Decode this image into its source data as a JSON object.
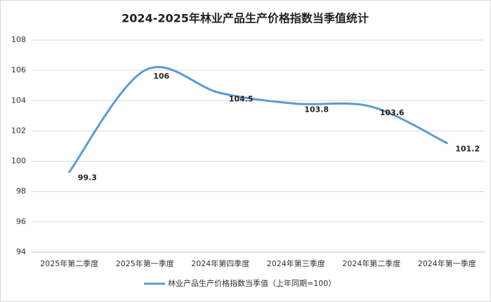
{
  "chart_data": {
    "type": "line",
    "title": "2024-2025年林业产品生产价格指数当季值统计",
    "categories": [
      "2025年第二季度",
      "2025年第一季度",
      "2024年第四季度",
      "2024年第三季度",
      "2024年第二季度",
      "2024年第一季度"
    ],
    "series": [
      {
        "name": "林业产品生产价格指数当季值（上年同期=100）",
        "color": "#5b9bd5",
        "values": [
          99.3,
          106,
          104.5,
          103.8,
          103.6,
          101.2
        ]
      }
    ],
    "ylim": [
      94,
      108
    ],
    "yticks": [
      94,
      96,
      98,
      100,
      102,
      104,
      106,
      108
    ],
    "grid": true,
    "smooth": true,
    "legend": "bottom"
  }
}
